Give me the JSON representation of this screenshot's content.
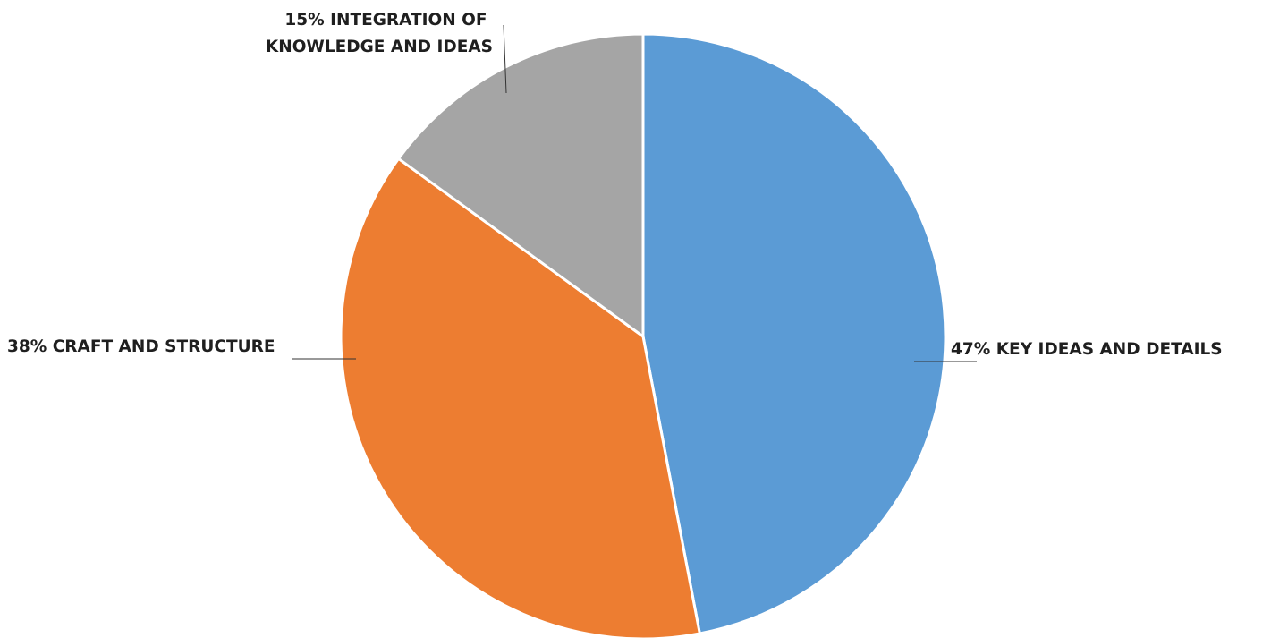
{
  "chart_data": {
    "type": "pie",
    "start_angle_deg": 0,
    "direction": "clockwise",
    "slices": [
      {
        "label": "KEY IDEAS AND DETAILS",
        "percent_text": "47%",
        "value": 47,
        "color": "#5b9bd5",
        "label_lines": [
          "47% KEY IDEAS AND DETAILS"
        ]
      },
      {
        "label": "CRAFT AND STRUCTURE",
        "percent_text": "38%",
        "value": 38,
        "color": "#ed7d31",
        "label_lines": [
          "38% CRAFT AND STRUCTURE"
        ]
      },
      {
        "label": "INTEGRATION OF KNOWLEDGE AND IDEAS",
        "percent_text": "15%",
        "value": 15,
        "color": "#a5a5a5",
        "label_lines": [
          "15% INTEGRATION OF",
          "KNOWLEDGE AND IDEAS"
        ]
      }
    ],
    "title": "",
    "legend": "none",
    "data_labels": "outside-with-leader-lines"
  }
}
